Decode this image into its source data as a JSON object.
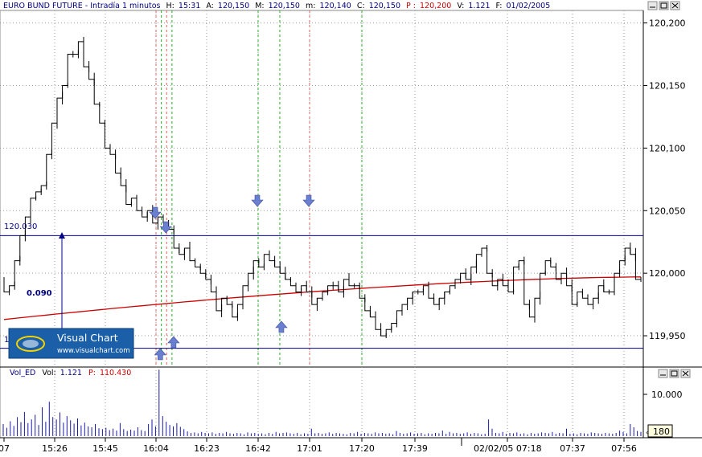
{
  "header": {
    "title": "EURO BUND FUTURE - Intradía 1 minutos",
    "h_label": "H:",
    "h_value": "15:31",
    "a_label": "A:",
    "a_value": "120,150",
    "m_label": "M:",
    "m_value": "120,150",
    "mm_label": "m:",
    "mm_value": "120,140",
    "c_label": "C:",
    "c_value": "120,150",
    "p_label": "P :",
    "p_value": "120,200",
    "v_label": "V:",
    "v_value": "1.121",
    "f_label": "F:",
    "f_value": "01/02/2005"
  },
  "annotations": {
    "level_label": "120.030",
    "range_label": "0.090",
    "hidden_level_label": "1"
  },
  "logo": {
    "name": "Visual Chart",
    "url": "www.visualchart.com"
  },
  "volume_header": {
    "name": "Vol_ED",
    "vol_label": "Vol:",
    "vol_value": "1.121",
    "p_label": "P:",
    "p_value": "110.430"
  },
  "volume_axis": {
    "tick": "10.000",
    "current": "180"
  },
  "colors": {
    "price": "#000000",
    "moving_average": "#cc0000",
    "level_lines": "#00008b",
    "arrows": "#6a7fd0",
    "volume": "#1a1aa8",
    "red_dashed": "#e06060",
    "green_dashed": "#20b020",
    "grid": "#9a9a9a"
  },
  "chart_data": [
    {
      "type": "line",
      "title": "EURO BUND FUTURE - Intradía 1 minutos",
      "x_ticks": [
        "07",
        "15:26",
        "15:45",
        "16:04",
        "16:23",
        "16:42",
        "17:01",
        "17:20",
        "17:39",
        "02/02/05 07:18",
        "07:37",
        "07:56"
      ],
      "y_ticks": [
        "120,200",
        "120,150",
        "120,100",
        "120,050",
        "120,000",
        "119,950"
      ],
      "ylim": [
        119.925,
        120.21
      ],
      "grid": true,
      "close_series": [
        119.995,
        119.985,
        119.99,
        120.01,
        120.03,
        120.045,
        120.06,
        120.065,
        120.07,
        120.095,
        120.12,
        120.14,
        120.15,
        120.175,
        120.175,
        120.185,
        120.165,
        120.155,
        120.135,
        120.12,
        120.1,
        120.095,
        120.08,
        120.07,
        120.055,
        120.06,
        120.05,
        120.045,
        120.05,
        120.04,
        120.045,
        120.04,
        120.035,
        120.02,
        120.015,
        120.02,
        120.01,
        120.005,
        120.0,
        119.995,
        119.985,
        119.97,
        119.98,
        119.975,
        119.965,
        119.975,
        119.99,
        120.0,
        120.01,
        120.005,
        120.015,
        120.01,
        120.005,
        120.0,
        119.995,
        119.99,
        119.985,
        119.99,
        119.985,
        119.975,
        119.98,
        119.985,
        119.99,
        119.99,
        119.985,
        119.995,
        119.99,
        119.99,
        119.98,
        119.97,
        119.965,
        119.955,
        119.95,
        119.955,
        119.96,
        119.97,
        119.975,
        119.98,
        119.985,
        119.985,
        119.99,
        119.98,
        119.975,
        119.98,
        119.985,
        119.99,
        119.995,
        120.0,
        119.995,
        120.005,
        120.015,
        120.02,
        120.0,
        119.99,
        119.995,
        119.99,
        119.985,
        120.005,
        120.01,
        119.975,
        119.965,
        119.98,
        120.0,
        120.01,
        120.005,
        119.995,
        120.0,
        119.99,
        119.975,
        119.985,
        119.98,
        119.975,
        119.98,
        119.99,
        119.985,
        119.985,
        120.0,
        120.01,
        120.02,
        120.015,
        119.995
      ],
      "moving_average": {
        "start": 119.963,
        "end": 119.997
      },
      "levels": [
        120.03,
        119.94
      ],
      "range_span": 0.09,
      "arrows_down": [
        "16:04",
        "16:08",
        "16:42",
        "17:01"
      ],
      "arrows_up": [
        "16:05",
        "16:10",
        "16:50"
      ],
      "dashed_lines_red": [
        "16:04",
        "16:08",
        "17:01"
      ],
      "dashed_lines_green": [
        "16:06",
        "16:10",
        "16:42",
        "16:50",
        "17:20"
      ]
    },
    {
      "type": "bar",
      "title": "Vol_ED",
      "y_ticks": [
        "10.000"
      ],
      "ylim": [
        0,
        14000
      ],
      "values": [
        2600,
        1800,
        3200,
        2200,
        4100,
        3000,
        5200,
        2800,
        3600,
        4600,
        2400,
        6200,
        3100,
        7400,
        4100,
        3600,
        5100,
        2900,
        4300,
        3400,
        2700,
        3800,
        2300,
        2900,
        2100,
        1900,
        2600,
        1700,
        1500,
        1800,
        1300,
        1600,
        1200,
        2800,
        1500,
        1100,
        1400,
        1200,
        1900,
        1300,
        1100,
        2600,
        3600,
        2100,
        14300,
        4300,
        3100,
        2400,
        2100,
        2800,
        2000,
        1500,
        1000,
        700,
        800,
        600,
        900,
        700,
        600,
        800,
        500,
        700,
        600,
        900,
        600,
        500,
        700,
        600,
        400,
        800,
        600,
        700,
        500,
        600,
        400,
        700,
        500,
        900,
        600,
        700,
        800,
        600,
        500,
        700,
        400,
        600,
        500,
        1600,
        600,
        700,
        500,
        600,
        800,
        500,
        700,
        600,
        500,
        400,
        700,
        600,
        900,
        500,
        700,
        600,
        500,
        800,
        600,
        700,
        500,
        600,
        400,
        1100,
        700,
        500,
        600,
        800,
        500,
        600,
        700,
        400,
        600,
        500,
        700,
        600,
        1200,
        500,
        900,
        600,
        700,
        500,
        600,
        800,
        500,
        700,
        600,
        400,
        500,
        3600,
        1600,
        700,
        600,
        900,
        500,
        700,
        600,
        800,
        500,
        600,
        400,
        700,
        500,
        600,
        800,
        700,
        600,
        900,
        500,
        700,
        600,
        1600,
        500,
        600,
        400,
        700,
        600,
        500,
        800,
        700,
        600,
        500,
        700,
        600,
        500,
        700,
        1200,
        900,
        600,
        2600,
        1900,
        1100,
        900
      ]
    }
  ]
}
